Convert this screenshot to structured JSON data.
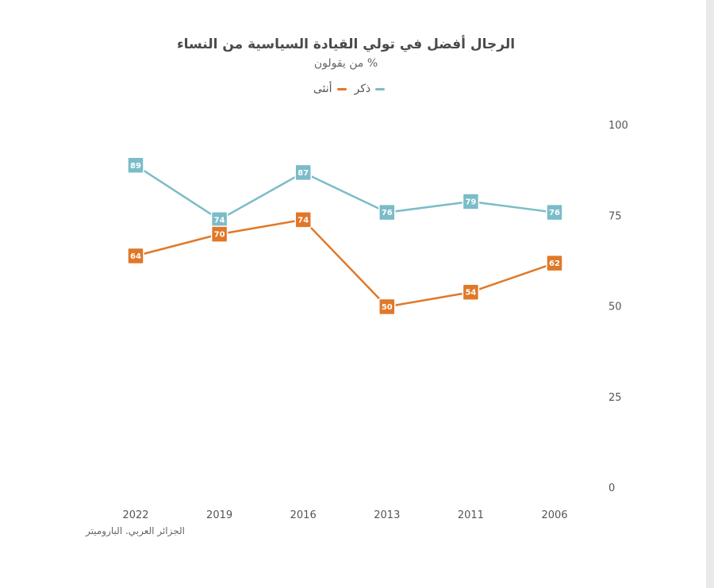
{
  "title": "الرجال أفضل في تولي القيادة السياسية من النساء",
  "subtitle": "% من يقولون",
  "source": "الجزائر العربي. الباروميتر",
  "colors": {
    "male": "#7bbcc8",
    "female": "#e07828"
  },
  "chart_data": {
    "type": "line",
    "title": "الرجال أفضل في تولي القيادة السياسية من النساء",
    "subtitle": "% من يقولون",
    "categories": [
      "2022",
      "2019",
      "2016",
      "2013",
      "2011",
      "2006"
    ],
    "series": [
      {
        "name": "ذكر",
        "color": "#7bbcc8",
        "values": [
          89,
          74,
          87,
          76,
          79,
          76
        ]
      },
      {
        "name": "أنثى",
        "color": "#e07828",
        "values": [
          64,
          70,
          74,
          50,
          54,
          62
        ]
      }
    ],
    "yticks": [
      0,
      25,
      50,
      75,
      100
    ],
    "ylim": [
      0,
      100
    ],
    "y_axis_side": "right",
    "legend_position": "top-center",
    "grid": false
  }
}
